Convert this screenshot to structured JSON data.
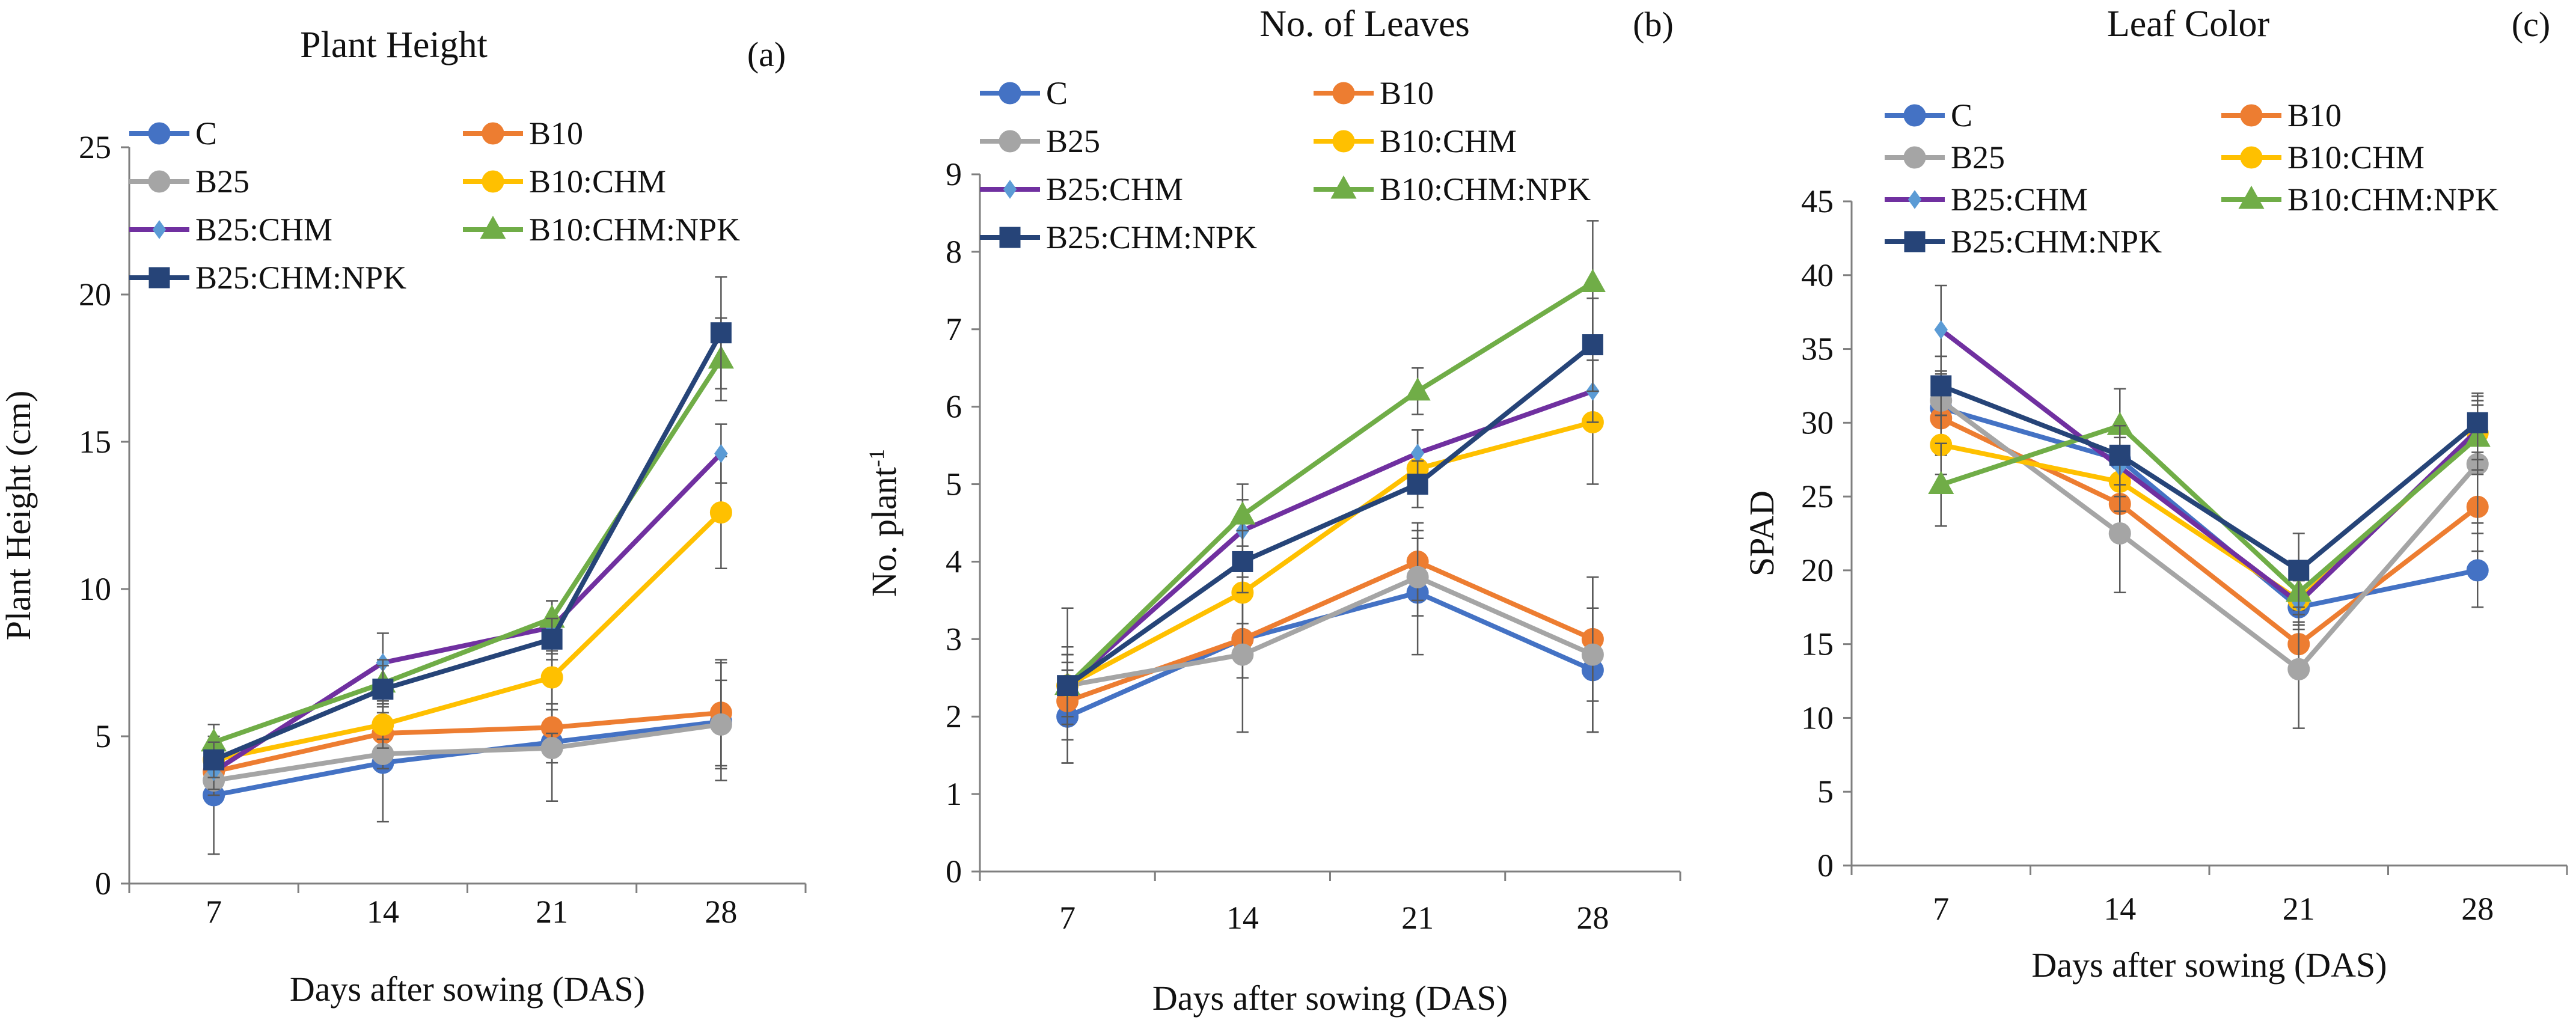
{
  "colors": {
    "C": "#4472C4",
    "B10": "#ED7D31",
    "B25": "#A5A5A5",
    "B10:CHM": "#FFC000",
    "B25:CHM": "#7030A0",
    "B10:CHM:NPK": "#70AD47",
    "B25:CHM:NPK": "#264478",
    "B25:CHM_marker": "#5B9BD5",
    "axis": "#7F7F7F",
    "errorbar": "#595959"
  },
  "chart_data": [
    {
      "id": "a",
      "type": "line",
      "title": "Plant Height",
      "panel_label": "(a)",
      "xlabel": "Days after sowing (DAS)",
      "ylabel": "Plant Height (cm)",
      "categories": [
        "7",
        "14",
        "21",
        "28"
      ],
      "ylim": [
        0,
        25
      ],
      "yticks": [
        0,
        5,
        10,
        15,
        20,
        25
      ],
      "grid": false,
      "legend_position": "top-left",
      "series": [
        {
          "name": "C",
          "marker": "circle",
          "values": [
            3.0,
            4.1,
            4.8,
            5.5
          ],
          "errors": [
            2.0,
            2.0,
            2.0,
            2.0
          ]
        },
        {
          "name": "B10",
          "marker": "circle",
          "values": [
            3.8,
            5.1,
            5.3,
            5.8
          ],
          "errors": [
            0.5,
            0.6,
            0.6,
            1.8
          ]
        },
        {
          "name": "B25",
          "marker": "circle",
          "values": [
            3.5,
            4.4,
            4.6,
            5.4
          ],
          "errors": [
            0.5,
            0.5,
            0.5,
            1.5
          ]
        },
        {
          "name": "B10:CHM",
          "marker": "circle",
          "values": [
            4.2,
            5.4,
            7.0,
            12.6
          ],
          "errors": [
            0.6,
            0.8,
            0.9,
            1.9
          ]
        },
        {
          "name": "B25:CHM",
          "marker": "diamond",
          "values": [
            3.8,
            7.5,
            8.7,
            14.6
          ],
          "errors": [
            0.6,
            1.0,
            0.9,
            1.0
          ]
        },
        {
          "name": "B10:CHM:NPK",
          "marker": "triangle",
          "values": [
            4.8,
            6.8,
            9.0,
            17.8
          ],
          "errors": [
            0.6,
            0.8,
            0.6,
            1.4
          ]
        },
        {
          "name": "B25:CHM:NPK",
          "marker": "square",
          "values": [
            4.2,
            6.6,
            8.3,
            18.7
          ],
          "errors": [
            0.6,
            0.8,
            0.7,
            1.9
          ]
        }
      ]
    },
    {
      "id": "b",
      "type": "line",
      "title": "No. of Leaves",
      "panel_label": "(b)",
      "xlabel": "Days after sowing (DAS)",
      "ylabel": "No. plant",
      "ylabel_superscript": "-1",
      "categories": [
        "7",
        "14",
        "21",
        "28"
      ],
      "ylim": [
        0,
        9
      ],
      "yticks": [
        0,
        1,
        2,
        3,
        4,
        5,
        6,
        7,
        8,
        9
      ],
      "grid": false,
      "legend_position": "top-left",
      "series": [
        {
          "name": "C",
          "marker": "circle",
          "values": [
            2.0,
            3.0,
            3.6,
            2.6
          ],
          "errors": [
            0.6,
            0.5,
            0.8,
            0.8
          ]
        },
        {
          "name": "B10",
          "marker": "circle",
          "values": [
            2.2,
            3.0,
            4.0,
            3.0
          ],
          "errors": [
            0.5,
            0.5,
            0.5,
            0.8
          ]
        },
        {
          "name": "B25",
          "marker": "circle",
          "values": [
            2.4,
            2.8,
            3.8,
            2.8
          ],
          "errors": [
            1.0,
            1.0,
            0.5,
            1.0
          ]
        },
        {
          "name": "B10:CHM",
          "marker": "circle",
          "values": [
            2.4,
            3.6,
            5.2,
            5.8
          ],
          "errors": [
            0.5,
            0.4,
            0.5,
            0.8
          ]
        },
        {
          "name": "B25:CHM",
          "marker": "diamond",
          "values": [
            2.4,
            4.4,
            5.4,
            6.2
          ],
          "errors": [
            0.4,
            0.4,
            0.3,
            0.4
          ]
        },
        {
          "name": "B10:CHM:NPK",
          "marker": "triangle",
          "values": [
            2.4,
            4.6,
            6.2,
            7.6
          ],
          "errors": [
            0.4,
            0.4,
            0.3,
            0.8
          ]
        },
        {
          "name": "B25:CHM:NPK",
          "marker": "square",
          "values": [
            2.4,
            4.0,
            5.0,
            6.8
          ],
          "errors": [
            0.4,
            0.4,
            0.3,
            0.6
          ]
        }
      ]
    },
    {
      "id": "c",
      "type": "line",
      "title": "Leaf Color",
      "panel_label": "(c)",
      "xlabel": "Days after sowing (DAS)",
      "ylabel": "SPAD",
      "categories": [
        "7",
        "14",
        "21",
        "28"
      ],
      "ylim": [
        0,
        45
      ],
      "yticks": [
        0,
        5,
        10,
        15,
        20,
        25,
        30,
        35,
        40,
        45
      ],
      "grid": false,
      "legend_position": "top-left",
      "series": [
        {
          "name": "C",
          "marker": "circle",
          "values": [
            31.0,
            27.5,
            17.5,
            20.0
          ],
          "errors": [
            2.5,
            2.0,
            2.0,
            2.5
          ]
        },
        {
          "name": "B10",
          "marker": "circle",
          "values": [
            30.3,
            24.5,
            15.0,
            24.3
          ],
          "errors": [
            2.5,
            2.0,
            2.0,
            3.0
          ]
        },
        {
          "name": "B25",
          "marker": "circle",
          "values": [
            31.5,
            22.5,
            13.3,
            27.2
          ],
          "errors": [
            3.0,
            4.0,
            4.0,
            4.0
          ]
        },
        {
          "name": "B10:CHM",
          "marker": "circle",
          "values": [
            28.5,
            26.0,
            18.0,
            29.3
          ],
          "errors": [
            2.0,
            2.0,
            2.0,
            2.5
          ]
        },
        {
          "name": "B25:CHM",
          "marker": "diamond",
          "values": [
            36.3,
            27.0,
            17.8,
            29.5
          ],
          "errors": [
            3.0,
            2.0,
            1.5,
            2.0
          ]
        },
        {
          "name": "B10:CHM:NPK",
          "marker": "triangle",
          "values": [
            25.8,
            29.8,
            18.5,
            29.0
          ],
          "errors": [
            2.8,
            2.5,
            2.0,
            2.5
          ]
        },
        {
          "name": "B25:CHM:NPK",
          "marker": "square",
          "values": [
            32.5,
            27.8,
            20.0,
            30.0
          ],
          "errors": [
            2.0,
            2.0,
            2.5,
            2.0
          ]
        }
      ]
    }
  ]
}
